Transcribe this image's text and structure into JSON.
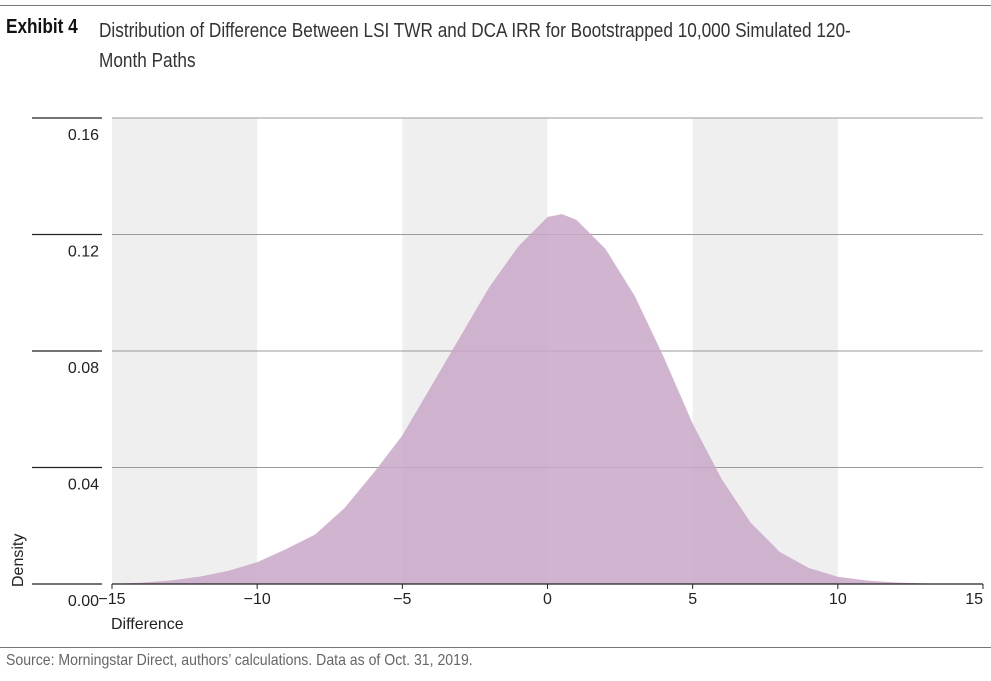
{
  "header": {
    "exhibit_label": "Exhibit 4",
    "title": "Distribution of Difference Between LSI TWR and DCA IRR for Bootstrapped 10,000 Simulated 120-Month Paths"
  },
  "footer": {
    "source": "Source: Morningstar Direct, authors’ calculations. Data as of Oct. 31, 2019."
  },
  "colors": {
    "fill": "#C9A7C8",
    "band": "#EFEFEF",
    "grid": "#9A9A9A"
  },
  "chart_data": {
    "type": "area",
    "xlabel": "Difference",
    "ylabel": "Density",
    "xlim": [
      -15,
      15
    ],
    "ylim": [
      0,
      0.16
    ],
    "x_ticks": [
      "−15",
      "−10",
      "−5",
      "0",
      "5",
      "10",
      "15"
    ],
    "y_ticks": [
      "0.16",
      "0.12",
      "0.08",
      "0.04",
      "0.00"
    ],
    "shaded_bands": [
      [
        -15,
        -10
      ],
      [
        -5,
        0
      ],
      [
        5,
        10
      ]
    ],
    "grid": true,
    "series": [
      {
        "x": [
          -15,
          -14,
          -13,
          -12,
          -11,
          -10,
          -9,
          -8,
          -7,
          -6,
          -5,
          -4,
          -3,
          -2,
          -1,
          0,
          0.5,
          1,
          2,
          3,
          4,
          5,
          6,
          7,
          8,
          9,
          10,
          11,
          12,
          13,
          14,
          15
        ],
        "values": [
          0.0001,
          0.0004,
          0.0012,
          0.0025,
          0.0045,
          0.0075,
          0.012,
          0.017,
          0.026,
          0.038,
          0.051,
          0.068,
          0.085,
          0.102,
          0.116,
          0.126,
          0.127,
          0.125,
          0.115,
          0.099,
          0.078,
          0.055,
          0.036,
          0.021,
          0.011,
          0.0055,
          0.0025,
          0.0012,
          0.0005,
          0.0002,
          0.0001,
          0.0
        ]
      }
    ]
  }
}
